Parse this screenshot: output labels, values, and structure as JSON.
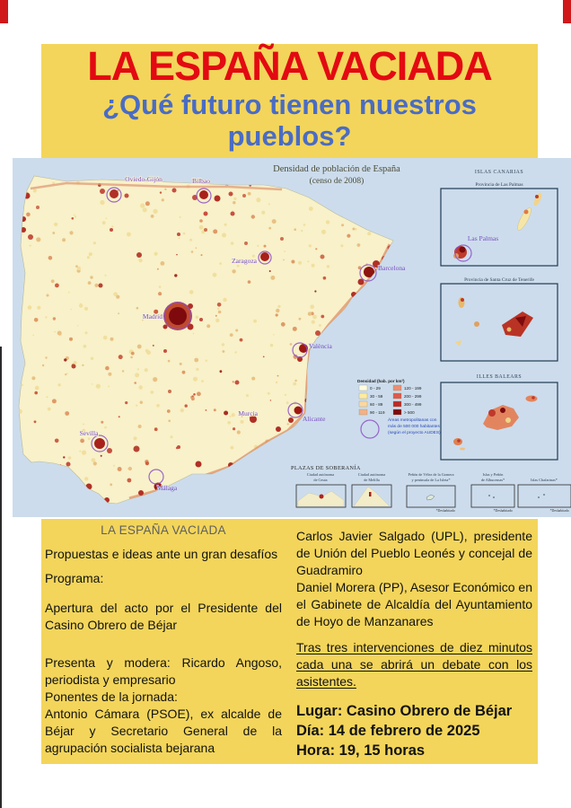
{
  "poster": {
    "title": "LA ESPAÑA VACIADA",
    "subtitle_line1": "¿Qué futuro tienen nuestros",
    "subtitle_line2": "pueblos?"
  },
  "map": {
    "title_line1": "Densidad de población de España",
    "title_line2": "(censo de 2008)",
    "cities": [
      {
        "name": "Oviedo-Gijón"
      },
      {
        "name": "Bilbao"
      },
      {
        "name": "Zaragoza"
      },
      {
        "name": "Madrid"
      },
      {
        "name": "Barcelona"
      },
      {
        "name": "València"
      },
      {
        "name": "Murcia"
      },
      {
        "name": "Alicante"
      },
      {
        "name": "Sevilla"
      },
      {
        "name": "Málaga"
      },
      {
        "name": "Las Palmas"
      }
    ],
    "legend": {
      "heading": "Densidad (hab. por km²)",
      "items": [
        {
          "range": "0 - 29",
          "color": "#fffce0"
        },
        {
          "range": "30 - 59",
          "color": "#ffeb9e"
        },
        {
          "range": "60 - 89",
          "color": "#fbd7a2"
        },
        {
          "range": "90 - 119",
          "color": "#f3b186"
        },
        {
          "range": "120 - 199",
          "color": "#ec8d72"
        },
        {
          "range": "200 - 299",
          "color": "#de5a4a"
        },
        {
          "range": "300 - 499",
          "color": "#bb2d25"
        },
        {
          "range": "> 500",
          "color": "#7e0a0d"
        }
      ]
    },
    "note_line1": "Áreas metropolitanas con",
    "note_line2": "más de 500 000 habitantes",
    "note_line3": "(según el proyecto AUDES)",
    "insets": {
      "canarias_title": "ISLAS CANARIAS",
      "las_palmas_subtitle": "Provincia de Las Palmas",
      "tenerife_subtitle": "Provincia de Santa Cruz de Tenerife",
      "balears_title": "ILLES BALEARS"
    },
    "plazas": {
      "heading": "PLAZAS DE SOBERANÍA",
      "footnote": "*Deshabitado",
      "boxes": [
        {
          "line1": "Ciudad autónoma",
          "line2": "de Ceuta"
        },
        {
          "line1": "Ciudad autónoma",
          "line2": "de Melilla"
        },
        {
          "line1": "Peñón de Vélez de la Gomera",
          "line2": "y península de La Isleta*"
        },
        {
          "line1": "Islas y Peñón",
          "line2": "de Alhucemas*"
        },
        {
          "line1": "Islas Chafarinas*",
          "line2": ""
        }
      ]
    }
  },
  "details": {
    "left": {
      "heading": "LA ESPAÑA VACIADA",
      "intro": "Propuestas e ideas ante un gran desafíos",
      "program_label": "Programa:",
      "item1": "Apertura del acto por el Presidente del Casino Obrero de Béjar",
      "item2": "Presenta y modera: Ricardo Angoso, periodista y empresario",
      "item3": "Ponentes de la jornada:",
      "item4": "Antonio Cámara (PSOE), ex alcalde de Béjar y Secretario General de la agrupación socialista bejarana"
    },
    "right": {
      "speaker1": "Carlos Javier Salgado (UPL), presidente de Unión del Pueblo Leonés y concejal de Guadramiro",
      "speaker2": "Daniel Morera (PP), Asesor Económico en el Gabinete de Alcaldía del Ayuntamiento de Hoyo de Manzanares",
      "debate_note": "Tras tres intervenciones de diez minutos cada una se abrirá un debate con los asistentes.",
      "venue": "Lugar: Casino Obrero de Béjar",
      "date": "Día: 14 de febrero de 2025",
      "time": "Hora: 19, 15 horas"
    }
  },
  "colors": {
    "poster_yellow": "#f3d55b",
    "title_red": "#e30a12",
    "subtitle_blue": "#4a6cc3",
    "sea_blue": "#ccdcec",
    "land_cream": "#f8f1c9",
    "metro_purple": "#8b4fc8"
  }
}
